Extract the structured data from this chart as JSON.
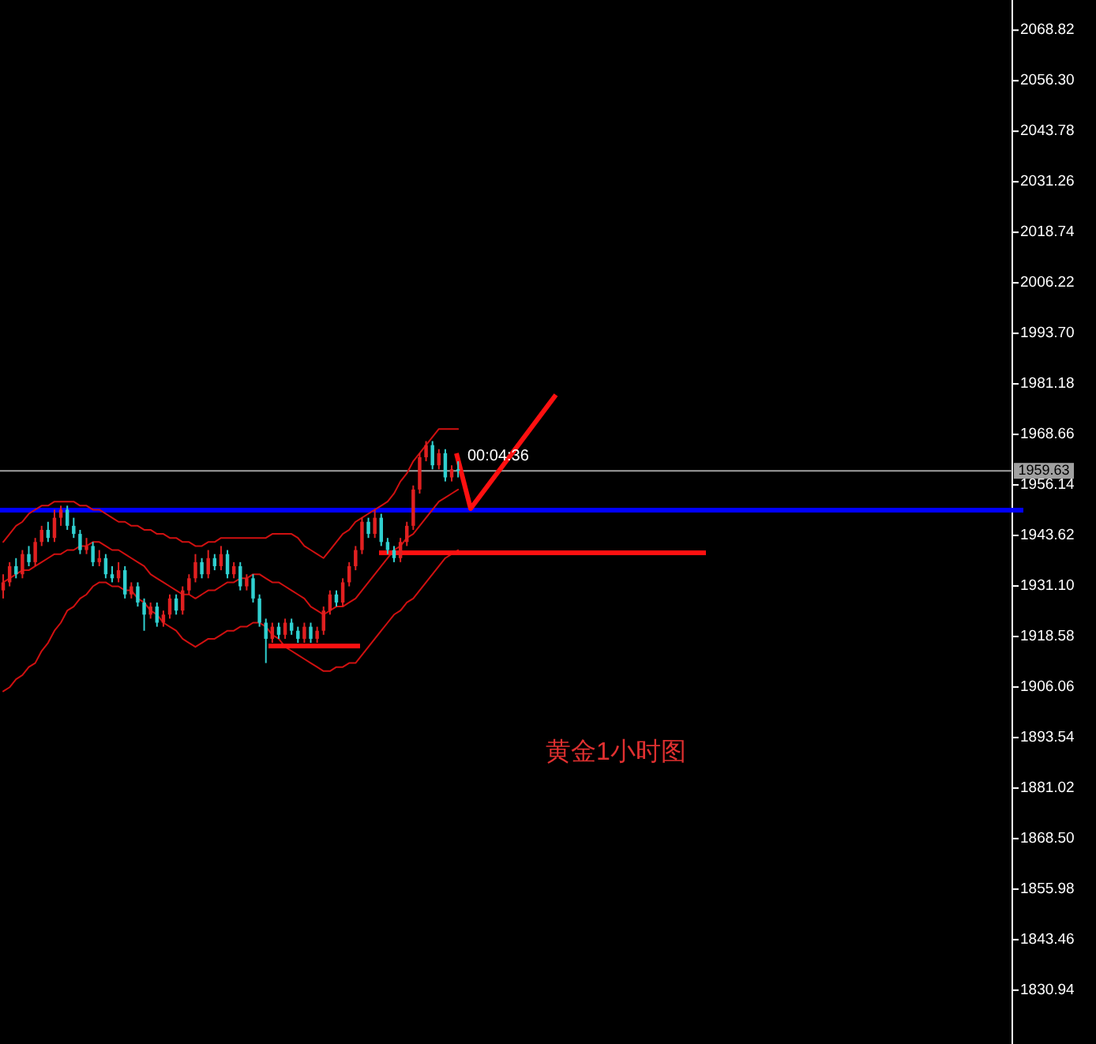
{
  "chart_data": {
    "type": "candlestick",
    "categories": [
      null,
      null,
      null,
      null,
      null,
      null,
      null,
      null,
      null,
      null,
      null,
      null,
      null,
      null,
      null,
      null,
      null,
      null,
      null,
      null,
      null,
      null,
      null,
      null,
      null,
      null,
      null,
      null,
      null,
      null,
      null,
      null,
      null,
      null,
      null,
      null,
      null,
      null,
      null,
      null,
      null,
      null,
      null,
      null,
      null,
      null,
      null,
      null,
      null,
      null,
      null,
      null,
      null,
      null,
      null,
      null,
      null,
      null,
      null,
      null,
      null,
      null,
      null,
      null,
      null,
      null,
      null,
      null,
      null,
      null,
      null,
      null,
      null,
      null,
      null,
      null,
      null,
      null,
      null,
      null,
      null,
      null,
      null,
      null,
      null,
      null,
      null,
      null,
      null,
      null,
      null,
      null,
      null,
      null,
      null,
      null,
      null,
      null,
      null,
      null,
      null,
      null,
      null,
      null,
      null,
      null,
      null,
      null,
      null,
      null,
      null,
      null,
      null,
      null,
      null,
      null,
      null,
      null,
      null,
      null,
      null,
      null,
      null,
      null,
      null,
      null,
      null,
      null,
      null,
      null,
      null,
      null,
      null,
      null,
      null,
      null,
      null,
      null,
      null,
      null,
      null,
      null,
      null,
      null,
      null,
      null,
      null,
      null,
      null,
      null,
      null,
      null,
      null,
      null,
      null,
      null,
      null,
      null
    ],
    "ohlc": [
      [
        1930,
        1934,
        1928,
        1932
      ],
      [
        1932,
        1937,
        1931,
        1936
      ],
      [
        1936,
        1938,
        1933,
        1934
      ],
      [
        1934,
        1940,
        1933,
        1939
      ],
      [
        1939,
        1941,
        1936,
        1937
      ],
      [
        1937,
        1943,
        1936,
        1942
      ],
      [
        1942,
        1946,
        1941,
        1945
      ],
      [
        1945,
        1947,
        1942,
        1943
      ],
      [
        1943,
        1950,
        1942,
        1948
      ],
      [
        1948,
        1951,
        1946,
        1950
      ],
      [
        1950,
        1951,
        1945,
        1946
      ],
      [
        1946,
        1948,
        1943,
        1944
      ],
      [
        1944,
        1945,
        1939,
        1940
      ],
      [
        1940,
        1943,
        1939,
        1941
      ],
      [
        1941,
        1942,
        1936,
        1937
      ],
      [
        1937,
        1940,
        1936,
        1938
      ],
      [
        1938,
        1939,
        1933,
        1934
      ],
      [
        1934,
        1936,
        1932,
        1933
      ],
      [
        1933,
        1937,
        1932,
        1935
      ],
      [
        1935,
        1936,
        1928,
        1929
      ],
      [
        1929,
        1932,
        1928,
        1931
      ],
      [
        1931,
        1932,
        1926,
        1927
      ],
      [
        1927,
        1928,
        1920,
        1924
      ],
      [
        1924,
        1927,
        1923,
        1926
      ],
      [
        1926,
        1927,
        1921,
        1922
      ],
      [
        1922,
        1925,
        1921,
        1924
      ],
      [
        1924,
        1929,
        1923,
        1928
      ],
      [
        1928,
        1929,
        1924,
        1925
      ],
      [
        1925,
        1931,
        1924,
        1930
      ],
      [
        1930,
        1934,
        1929,
        1933
      ],
      [
        1933,
        1939,
        1932,
        1937
      ],
      [
        1937,
        1938,
        1933,
        1934
      ],
      [
        1934,
        1940,
        1933,
        1938
      ],
      [
        1938,
        1939,
        1935,
        1936
      ],
      [
        1936,
        1941,
        1935,
        1939
      ],
      [
        1939,
        1940,
        1933,
        1934
      ],
      [
        1934,
        1937,
        1933,
        1936
      ],
      [
        1936,
        1937,
        1930,
        1931
      ],
      [
        1931,
        1934,
        1930,
        1933
      ],
      [
        1933,
        1934,
        1927,
        1928
      ],
      [
        1928,
        1929,
        1921,
        1922
      ],
      [
        1922,
        1923,
        1912,
        1918
      ],
      [
        1918,
        1922,
        1917,
        1921
      ],
      [
        1921,
        1922,
        1918,
        1919
      ],
      [
        1919,
        1923,
        1918,
        1922
      ],
      [
        1922,
        1923,
        1919,
        1920
      ],
      [
        1920,
        1921,
        1917,
        1918
      ],
      [
        1918,
        1922,
        1917,
        1921
      ],
      [
        1921,
        1922,
        1917,
        1918
      ],
      [
        1918,
        1921,
        1917,
        1920
      ],
      [
        1920,
        1926,
        1919,
        1925
      ],
      [
        1925,
        1930,
        1924,
        1929
      ],
      [
        1929,
        1930,
        1926,
        1927
      ],
      [
        1927,
        1933,
        1926,
        1932
      ],
      [
        1932,
        1937,
        1931,
        1936
      ],
      [
        1936,
        1941,
        1935,
        1940
      ],
      [
        1940,
        1948,
        1939,
        1947
      ],
      [
        1947,
        1948,
        1943,
        1944
      ],
      [
        1944,
        1950,
        1943,
        1948
      ],
      [
        1948,
        1949,
        1941,
        1942
      ],
      [
        1942,
        1943,
        1939,
        1940
      ],
      [
        1940,
        1941,
        1937,
        1938
      ],
      [
        1938,
        1943,
        1937,
        1942
      ],
      [
        1942,
        1947,
        1941,
        1946
      ],
      [
        1946,
        1956,
        1945,
        1955
      ],
      [
        1955,
        1964,
        1954,
        1963
      ],
      [
        1963,
        1967,
        1962,
        1966
      ],
      [
        1966,
        1967,
        1960,
        1961
      ],
      [
        1961,
        1965,
        1960,
        1964
      ],
      [
        1964,
        1965,
        1957,
        1958
      ],
      [
        1958,
        1961,
        1957,
        1960
      ],
      [
        1960,
        1962,
        1958,
        1959.63
      ],
      null,
      null,
      null,
      null,
      null,
      null,
      null,
      null,
      null,
      null,
      null,
      null,
      null,
      null,
      null,
      null,
      null,
      null,
      null,
      null,
      null,
      null,
      null,
      null,
      null,
      null,
      null,
      null,
      null,
      null,
      null,
      null,
      null,
      null,
      null,
      null,
      null,
      null,
      null,
      null,
      null,
      null,
      null,
      null,
      null,
      null,
      null,
      null,
      null,
      null,
      null,
      null,
      null,
      null,
      null,
      null,
      null,
      null,
      null,
      null,
      null,
      null,
      null,
      null,
      null,
      null,
      null,
      null,
      null,
      null,
      null,
      null,
      null,
      null,
      null,
      null,
      null,
      null,
      null,
      null,
      null,
      null,
      null,
      null,
      null,
      null
    ],
    "colors": [
      "#e02020",
      "#e02020",
      "#30d0d0",
      "#e02020",
      "#30d0d0",
      "#e02020",
      "#e02020",
      "#30d0d0",
      "#e02020",
      "#e02020",
      "#30d0d0",
      "#30d0d0",
      "#30d0d0",
      "#e02020",
      "#30d0d0",
      "#e02020",
      "#30d0d0",
      "#30d0d0",
      "#e02020",
      "#30d0d0",
      "#e02020",
      "#30d0d0",
      "#30d0d0",
      "#e02020",
      "#30d0d0",
      "#e02020",
      "#e02020",
      "#30d0d0",
      "#e02020",
      "#e02020",
      "#e02020",
      "#30d0d0",
      "#e02020",
      "#30d0d0",
      "#e02020",
      "#30d0d0",
      "#e02020",
      "#30d0d0",
      "#e02020",
      "#30d0d0",
      "#30d0d0",
      "#30d0d0",
      "#e02020",
      "#30d0d0",
      "#e02020",
      "#30d0d0",
      "#30d0d0",
      "#e02020",
      "#30d0d0",
      "#e02020",
      "#e02020",
      "#e02020",
      "#30d0d0",
      "#e02020",
      "#e02020",
      "#e02020",
      "#e02020",
      "#30d0d0",
      "#e02020",
      "#30d0d0",
      "#30d0d0",
      "#30d0d0",
      "#e02020",
      "#e02020",
      "#e02020",
      "#e02020",
      "#e02020",
      "#30d0d0",
      "#e02020",
      "#30d0d0",
      "#e02020",
      "#30d0d0",
      null,
      null,
      null,
      null,
      null,
      null,
      null,
      null,
      null,
      null,
      null,
      null,
      null,
      null,
      null,
      null,
      null,
      null,
      null,
      null,
      null,
      null,
      null,
      null,
      null,
      null,
      null,
      null,
      null,
      null,
      null,
      null,
      null,
      null,
      null,
      null,
      null,
      null,
      null,
      null,
      null,
      null,
      null,
      null,
      null,
      null,
      null,
      null,
      null,
      null,
      null,
      null,
      null,
      null,
      null,
      null,
      null,
      null,
      null,
      null,
      null,
      null,
      null,
      null,
      null,
      null,
      null,
      null,
      null,
      null,
      null,
      null,
      null,
      null,
      null,
      null,
      null,
      null,
      null,
      null,
      null,
      null,
      null,
      null,
      null,
      null
    ],
    "series": [
      {
        "type": "line",
        "color": "#d01010",
        "values": [
          1942,
          1944,
          1946,
          1947,
          1949,
          1950,
          1951,
          1951,
          1952,
          1952,
          1952,
          1952,
          1951,
          1951,
          1950,
          1950,
          1949,
          1948,
          1947,
          1947,
          1946,
          1946,
          1945,
          1945,
          1944,
          1944,
          1943,
          1943,
          1942,
          1942,
          1941,
          1941,
          1942,
          1942,
          1943,
          1943,
          1943,
          1943,
          1943,
          1943,
          1943,
          1943,
          1944,
          1944,
          1944,
          1944,
          1943,
          1941,
          1940,
          1939,
          1938,
          1940,
          1942,
          1944,
          1945,
          1947,
          1948,
          1949,
          1950,
          1951,
          1952,
          1954,
          1957,
          1959,
          1962,
          1964,
          1966,
          1968,
          1970,
          1970,
          1970,
          1970,
          null,
          null,
          null,
          null,
          null,
          null,
          null,
          null,
          null,
          null,
          null,
          null,
          null,
          null,
          null,
          null,
          null,
          null,
          null,
          null,
          null,
          null,
          null,
          null,
          null,
          null,
          null,
          null,
          null,
          null,
          null,
          null,
          null,
          null,
          null,
          null,
          null,
          null,
          null,
          null,
          null,
          null,
          null,
          null,
          null,
          null,
          null,
          null,
          null,
          null,
          null,
          null,
          null,
          null,
          null,
          null,
          null,
          null,
          null,
          null,
          null,
          null,
          null,
          null,
          null,
          null,
          null,
          null,
          null,
          null,
          null,
          null,
          null,
          null,
          null,
          null,
          null,
          null,
          null,
          null,
          null,
          null,
          null,
          null,
          null,
          null
        ]
      },
      {
        "type": "line",
        "color": "#d01010",
        "values": [
          1932,
          1933,
          1934,
          1935,
          1935,
          1936,
          1937,
          1938,
          1939,
          1939,
          1940,
          1940,
          1941,
          1941,
          1942,
          1942,
          1941,
          1940,
          1940,
          1939,
          1938,
          1937,
          1936,
          1934,
          1933,
          1932,
          1931,
          1930,
          1929,
          1929,
          1928,
          1929,
          1930,
          1930,
          1931,
          1932,
          1932,
          1933,
          1933,
          1934,
          1934,
          1933,
          1932,
          1932,
          1931,
          1930,
          1929,
          1928,
          1926,
          1925,
          1924,
          1925,
          1926,
          1926,
          1927,
          1928,
          1930,
          1932,
          1934,
          1936,
          1938,
          1940,
          1941,
          1943,
          1944,
          1946,
          1948,
          1950,
          1952,
          1953,
          1954,
          1955,
          null,
          null,
          null,
          null,
          null,
          null,
          null,
          null,
          null,
          null,
          null,
          null,
          null,
          null,
          null,
          null,
          null,
          null,
          null,
          null,
          null,
          null,
          null,
          null,
          null,
          null,
          null,
          null,
          null,
          null,
          null,
          null,
          null,
          null,
          null,
          null,
          null,
          null,
          null,
          null,
          null,
          null,
          null,
          null,
          null,
          null,
          null,
          null,
          null,
          null,
          null,
          null,
          null,
          null,
          null,
          null,
          null,
          null,
          null,
          null,
          null,
          null,
          null,
          null,
          null,
          null,
          null,
          null,
          null,
          null,
          null,
          null,
          null,
          null,
          null,
          null,
          null,
          null,
          null,
          null,
          null,
          null,
          null,
          null,
          null,
          null
        ]
      },
      {
        "type": "line",
        "color": "#d01010",
        "values": [
          1905,
          1906,
          1908,
          1909,
          1911,
          1912,
          1915,
          1917,
          1920,
          1922,
          1925,
          1926,
          1928,
          1929,
          1931,
          1932,
          1932,
          1931,
          1931,
          1930,
          1930,
          1928,
          1927,
          1925,
          1924,
          1922,
          1921,
          1920,
          1918,
          1917,
          1916,
          1917,
          1918,
          1918,
          1919,
          1920,
          1920,
          1921,
          1921,
          1922,
          1922,
          1921,
          1919,
          1918,
          1916,
          1915,
          1914,
          1913,
          1912,
          1911,
          1910,
          1910,
          1911,
          1911,
          1912,
          1912,
          1914,
          1916,
          1918,
          1920,
          1922,
          1924,
          1925,
          1927,
          1928,
          1930,
          1932,
          1934,
          1936,
          1938,
          1939,
          1940,
          null,
          null,
          null,
          null,
          null,
          null,
          null,
          null,
          null,
          null,
          null,
          null,
          null,
          null,
          null,
          null,
          null,
          null,
          null,
          null,
          null,
          null,
          null,
          null,
          null,
          null,
          null,
          null,
          null,
          null,
          null,
          null,
          null,
          null,
          null,
          null,
          null,
          null,
          null,
          null,
          null,
          null,
          null,
          null,
          null,
          null,
          null,
          null,
          null,
          null,
          null,
          null,
          null,
          null,
          null,
          null,
          null,
          null,
          null,
          null,
          null,
          null,
          null,
          null,
          null,
          null,
          null,
          null,
          null,
          null,
          null,
          null,
          null,
          null,
          null,
          null,
          null,
          null,
          null,
          null,
          null,
          null,
          null,
          null,
          null,
          null
        ]
      }
    ],
    "ref_lines": [
      {
        "axis": "y",
        "value": 1949.9,
        "color": "#0000ff"
      },
      {
        "axis": "y",
        "value": 1959.63,
        "label": "1959.63",
        "color": "#a0a0a0"
      }
    ],
    "annotations": [
      "00:04:36",
      "黄金1小时图"
    ],
    "ylim": [
      1817.6,
      2076.3
    ],
    "yticks": [
      {
        "value": 2068.82,
        "label": "2068.82"
      },
      {
        "value": 2056.3,
        "label": "2056.30"
      },
      {
        "value": 2043.78,
        "label": "2043.78"
      },
      {
        "value": 2031.26,
        "label": "2031.26"
      },
      {
        "value": 2018.74,
        "label": "2018.74"
      },
      {
        "value": 2006.22,
        "label": "2006.22"
      },
      {
        "value": 1993.7,
        "label": "1993.70"
      },
      {
        "value": 1981.18,
        "label": "1981.18"
      },
      {
        "value": 1968.66,
        "label": "1968.66"
      },
      {
        "value": 1956.14,
        "label": "1956.14"
      },
      {
        "value": 1943.62,
        "label": "1943.62"
      },
      {
        "value": 1931.1,
        "label": "1931.10"
      },
      {
        "value": 1918.58,
        "label": "1918.58"
      },
      {
        "value": 1906.06,
        "label": "1906.06"
      },
      {
        "value": 1893.54,
        "label": "1893.54"
      },
      {
        "value": 1881.02,
        "label": "1881.02"
      },
      {
        "value": 1868.5,
        "label": "1868.50"
      },
      {
        "value": 1855.98,
        "label": "1855.98"
      },
      {
        "value": 1843.46,
        "label": "1843.46"
      },
      {
        "value": 1830.94,
        "label": "1830.94"
      }
    ],
    "tick_labels": "y"
  }
}
